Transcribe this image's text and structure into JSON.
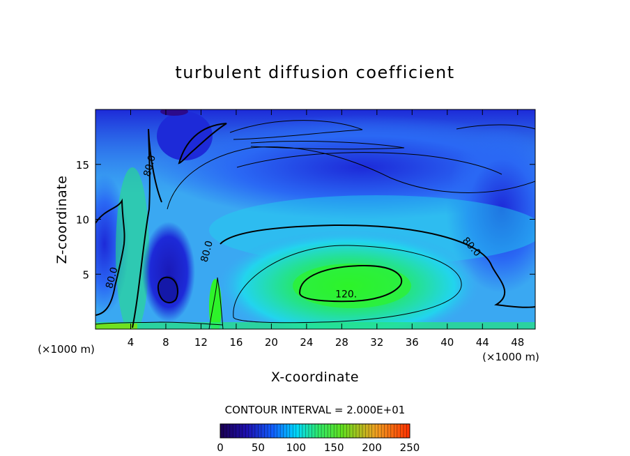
{
  "chart_data": {
    "type": "heatmap",
    "title": "turbulent diffusion coefficient",
    "xlabel": "X-coordinate",
    "ylabel": "Z-coordinate",
    "x_unit_left": "(×1000 m)",
    "x_unit_right": "(×1000 m)",
    "xlim": [
      0,
      50
    ],
    "ylim": [
      0,
      20
    ],
    "x_ticks": [
      4,
      8,
      12,
      16,
      20,
      24,
      28,
      32,
      36,
      40,
      44,
      48
    ],
    "y_ticks": [
      5,
      10,
      15
    ],
    "contour_interval_label": "CONTOUR INTERVAL = 2.000E+01",
    "contour_labels": [
      {
        "text": "80.0",
        "x": 6.5,
        "z": 14.8
      },
      {
        "text": "80.0",
        "x": 13,
        "z": 7.0
      },
      {
        "text": "80.0",
        "x": 2.2,
        "z": 4.6
      },
      {
        "text": "80.0",
        "x": 42.5,
        "z": 7.3
      },
      {
        "text": "120.",
        "x": 28.5,
        "z": 2.9
      }
    ],
    "colorbar": {
      "min": 0,
      "max": 250,
      "tick_labels": [
        "0",
        "50",
        "100",
        "150",
        "200",
        "250"
      ],
      "colors": [
        "#1a0050",
        "#1e10b0",
        "#1060ff",
        "#00d8ff",
        "#30e868",
        "#60e020",
        "#f0a020",
        "#ff3000"
      ]
    },
    "field_palette": {
      "deep": "#2c0a8c",
      "dark_blue": "#1d2ad8",
      "blue": "#2a68f4",
      "light_blue": "#3aa8f2",
      "cyan": "#22d4ee",
      "green": "#25e47e",
      "lime": "#2ef32a",
      "yellow_green": "#70e020"
    }
  }
}
